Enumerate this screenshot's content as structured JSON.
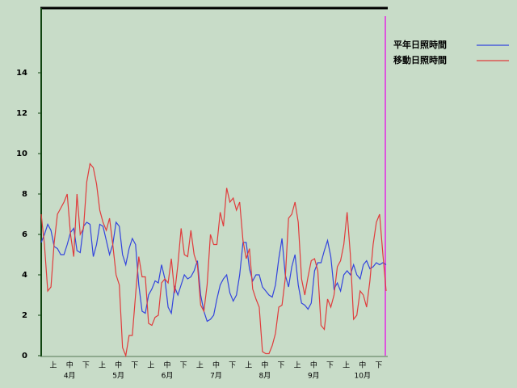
{
  "chart_data": {
    "type": "line",
    "categories": [
      null,
      null,
      "上",
      null,
      null,
      null,
      null,
      "中",
      null,
      null,
      null,
      null,
      "下",
      null,
      null,
      null,
      null,
      "上",
      null,
      null,
      null,
      null,
      "中",
      null,
      null,
      null,
      null,
      "下",
      null,
      null,
      null,
      null,
      "上",
      null,
      null,
      null,
      null,
      "中",
      null,
      null,
      null,
      null,
      "下",
      null,
      null,
      null,
      null,
      "上",
      null,
      null,
      null,
      null,
      "中",
      null,
      null,
      null,
      null,
      "下",
      null,
      null,
      null,
      null,
      "上",
      null,
      null,
      null,
      null,
      "中",
      null,
      null,
      null,
      null,
      "下",
      null,
      null,
      null,
      null,
      "上",
      null,
      null,
      null,
      null,
      "中",
      null,
      null,
      null,
      null,
      "下",
      null,
      null,
      null,
      null,
      "上",
      null,
      null,
      null,
      null,
      "中",
      null,
      null,
      null,
      null,
      "下",
      null,
      null,
      null,
      null
    ],
    "month_categories": [
      null,
      null,
      null,
      null,
      null,
      null,
      null,
      "4月",
      null,
      null,
      null,
      null,
      null,
      null,
      null,
      null,
      null,
      null,
      null,
      null,
      null,
      null,
      "5月",
      null,
      null,
      null,
      null,
      null,
      null,
      null,
      null,
      null,
      null,
      null,
      null,
      null,
      null,
      "6月",
      null,
      null,
      null,
      null,
      null,
      null,
      null,
      null,
      null,
      null,
      null,
      null,
      null,
      null,
      "7月",
      null,
      null,
      null,
      null,
      null,
      null,
      null,
      null,
      null,
      null,
      null,
      null,
      null,
      null,
      "8月",
      null,
      null,
      null,
      null,
      null,
      null,
      null,
      null,
      null,
      null,
      null,
      null,
      null,
      null,
      "9月",
      null,
      null,
      null,
      null,
      null,
      null,
      null,
      null,
      null,
      null,
      null,
      null,
      null,
      null,
      "10月",
      null,
      null,
      null,
      null,
      null,
      null,
      null,
      null,
      null
    ],
    "series": [
      {
        "name": "平年日照時間",
        "color": "#3344dd",
        "values": [
          5.6,
          6.0,
          6.5,
          6.2,
          5.4,
          5.3,
          5.0,
          5.0,
          5.5,
          6.1,
          6.3,
          5.2,
          5.1,
          6.4,
          6.6,
          6.5,
          4.9,
          5.5,
          6.5,
          6.4,
          5.7,
          5.0,
          5.5,
          6.6,
          6.4,
          5.0,
          4.5,
          5.3,
          5.8,
          5.5,
          3.5,
          2.2,
          2.1,
          3.0,
          3.3,
          3.7,
          3.6,
          4.5,
          3.8,
          2.4,
          2.1,
          3.4,
          3.0,
          3.5,
          4.0,
          3.8,
          3.9,
          4.2,
          4.7,
          3.0,
          2.2,
          1.7,
          1.8,
          2.0,
          2.8,
          3.5,
          3.8,
          4.0,
          3.1,
          2.7,
          3.0,
          4.0,
          5.6,
          5.6,
          4.3,
          3.7,
          4.0,
          4.0,
          3.4,
          3.2,
          3.0,
          2.9,
          3.5,
          4.8,
          5.8,
          4.0,
          3.4,
          4.4,
          5.0,
          3.5,
          2.6,
          2.5,
          2.3,
          2.6,
          4.2,
          4.6,
          4.6,
          5.2,
          5.7,
          4.9,
          3.3,
          3.6,
          3.2,
          4.0,
          4.2,
          4.0,
          4.5,
          4.0,
          3.8,
          4.5,
          4.7,
          4.3,
          4.4,
          4.6,
          4.5,
          4.6,
          4.5
        ]
      },
      {
        "name": "移動日照時間",
        "color": "#e03c3c",
        "values": [
          7.0,
          5.5,
          3.2,
          3.4,
          5.6,
          7.0,
          7.3,
          7.6,
          8.0,
          6.0,
          4.9,
          8.0,
          6.0,
          6.3,
          8.6,
          9.5,
          9.3,
          8.5,
          7.2,
          6.6,
          6.2,
          6.8,
          5.5,
          4.0,
          3.5,
          0.4,
          0.0,
          1.0,
          1.0,
          3.0,
          4.9,
          3.9,
          3.9,
          1.6,
          1.5,
          1.9,
          2.0,
          3.6,
          3.8,
          3.6,
          4.8,
          3.1,
          4.5,
          6.3,
          5.0,
          4.9,
          6.2,
          5.0,
          4.5,
          2.5,
          2.2,
          3.5,
          6.0,
          5.5,
          5.5,
          7.1,
          6.4,
          8.3,
          7.6,
          7.8,
          7.2,
          7.6,
          5.7,
          4.8,
          5.3,
          3.3,
          2.8,
          2.4,
          0.2,
          0.1,
          0.1,
          0.5,
          1.1,
          2.4,
          2.5,
          3.8,
          6.8,
          7.0,
          7.6,
          6.6,
          3.8,
          3.0,
          3.9,
          4.7,
          4.8,
          4.2,
          1.5,
          1.3,
          2.8,
          2.4,
          3.0,
          4.4,
          4.7,
          5.5,
          7.1,
          5.0,
          1.8,
          2.0,
          3.2,
          3.0,
          2.4,
          3.7,
          5.5,
          6.6,
          7.0,
          5.0,
          3.2
        ]
      }
    ],
    "ylim": [
      0,
      17.2
    ],
    "yticks": [
      0,
      2,
      4,
      6,
      8,
      10,
      12,
      14
    ]
  }
}
